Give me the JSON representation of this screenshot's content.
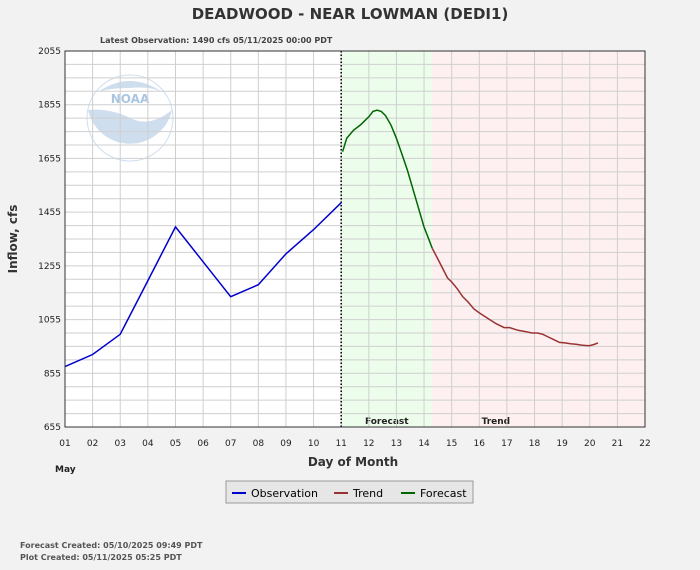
{
  "chart_data": {
    "type": "line",
    "title": "DEADWOOD - NEAR LOWMAN  (DEDI1)",
    "subtitle": "Latest Observation: 1490 cfs 05/11/2025 00:00 PDT",
    "xlabel": "Day of Month",
    "ylabel": "Inflow, cfs",
    "month_label": "May",
    "xlim": [
      1,
      22
    ],
    "ylim": [
      655,
      2055
    ],
    "x_ticks": [
      "01",
      "02",
      "03",
      "04",
      "05",
      "06",
      "07",
      "08",
      "09",
      "10",
      "11",
      "12",
      "13",
      "14",
      "15",
      "16",
      "17",
      "18",
      "19",
      "20",
      "21",
      "22"
    ],
    "y_ticks": [
      655,
      855,
      1055,
      1255,
      1455,
      1655,
      1855,
      2055
    ],
    "grid": true,
    "regions": [
      {
        "name": "Forecast",
        "label": "Forecast",
        "start": 11.0,
        "end": 14.3,
        "color": "#edfdec"
      },
      {
        "name": "Trend",
        "label": "Trend",
        "start": 14.3,
        "end": 22,
        "color": "#fef0f0"
      }
    ],
    "series": [
      {
        "name": "Observation",
        "color": "#0000cc",
        "x": [
          1,
          2,
          3,
          4,
          5,
          6,
          7,
          8,
          9,
          10,
          11
        ],
        "y": [
          880,
          925,
          1000,
          1200,
          1400,
          1270,
          1140,
          1185,
          1300,
          1390,
          1490
        ]
      },
      {
        "name": "Forecast",
        "color": "#006600",
        "x": [
          11.05,
          11.2,
          11.45,
          11.7,
          11.85,
          12.0,
          12.15,
          12.3,
          12.45,
          12.6,
          12.8,
          13.0,
          13.2,
          13.4,
          13.6,
          13.8,
          14.0,
          14.15,
          14.3
        ],
        "y": [
          1680,
          1730,
          1760,
          1780,
          1795,
          1810,
          1830,
          1835,
          1830,
          1815,
          1780,
          1730,
          1670,
          1610,
          1540,
          1470,
          1400,
          1360,
          1320
        ]
      },
      {
        "name": "Trend",
        "color": "#993333",
        "x": [
          14.3,
          14.5,
          14.7,
          14.85,
          15.0,
          15.2,
          15.4,
          15.6,
          15.8,
          16.0,
          16.3,
          16.6,
          16.9,
          17.1,
          17.4,
          17.7,
          17.9,
          18.1,
          18.3,
          18.5,
          18.7,
          18.9,
          19.1,
          19.3,
          19.5,
          19.7,
          19.9,
          20.0,
          20.15,
          20.3
        ],
        "y": [
          1320,
          1280,
          1240,
          1210,
          1195,
          1170,
          1140,
          1120,
          1095,
          1080,
          1060,
          1040,
          1025,
          1025,
          1015,
          1010,
          1005,
          1005,
          1000,
          990,
          980,
          970,
          968,
          965,
          963,
          960,
          958,
          958,
          962,
          968
        ]
      }
    ],
    "observation_cutoff_x": 11.0,
    "legend": {
      "position": "bottom-center",
      "entries": [
        {
          "label": "Observation",
          "color": "#0000cc"
        },
        {
          "label": "Trend",
          "color": "#993333"
        },
        {
          "label": "Forecast",
          "color": "#006600"
        }
      ]
    },
    "logo": {
      "text": "NOAA",
      "color": "#2a6fb5"
    }
  },
  "footer": {
    "forecast_created": "Forecast Created: 05/10/2025 09:49 PDT",
    "plot_created": "Plot Created: 05/11/2025 05:25 PDT"
  }
}
